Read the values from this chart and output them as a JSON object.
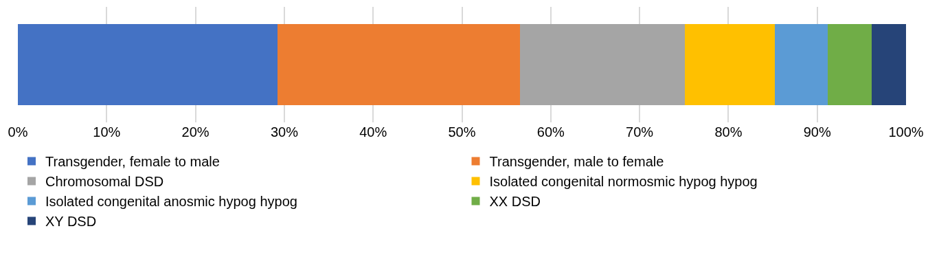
{
  "chart_data": {
    "type": "bar",
    "orientation": "horizontal",
    "stacked": true,
    "categories": [
      null
    ],
    "series": [
      {
        "name": "Transgender, female to male",
        "color": "#4472c4",
        "values": [
          29.2
        ]
      },
      {
        "name": "Transgender, male to female",
        "color": "#ed7d31",
        "values": [
          27.3
        ]
      },
      {
        "name": "Chromosomal DSD",
        "color": "#a5a5a5",
        "values": [
          18.6
        ]
      },
      {
        "name": "Isolated congenital normosmic hypog hypog",
        "color": "#ffc000",
        "values": [
          10.1
        ]
      },
      {
        "name": "Isolated congenital anosmic hypog hypog",
        "color": "#5b9bd5",
        "values": [
          6.0
        ]
      },
      {
        "name": "XX DSD",
        "color": "#70ad47",
        "values": [
          4.9
        ]
      },
      {
        "name": "XY DSD",
        "color": "#264478",
        "values": [
          3.9
        ]
      }
    ],
    "xlim": [
      0,
      100
    ],
    "xticks": [
      {
        "value": 0,
        "label": "0%"
      },
      {
        "value": 10,
        "label": "10%"
      },
      {
        "value": 20,
        "label": "20%"
      },
      {
        "value": 30,
        "label": "30%"
      },
      {
        "value": 40,
        "label": "40%"
      },
      {
        "value": 50,
        "label": "50%"
      },
      {
        "value": 60,
        "label": "60%"
      },
      {
        "value": 70,
        "label": "70%"
      },
      {
        "value": 80,
        "label": "80%"
      },
      {
        "value": 90,
        "label": "90%"
      },
      {
        "value": 100,
        "label": "100%"
      }
    ],
    "grid": "x",
    "legend": "bottom"
  }
}
